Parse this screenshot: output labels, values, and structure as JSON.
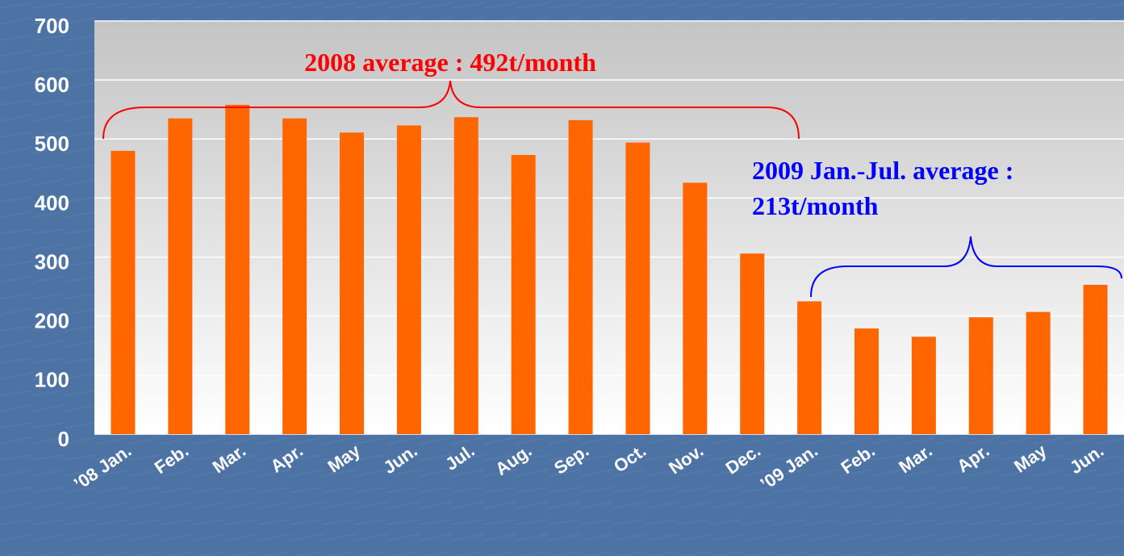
{
  "chart_data": {
    "type": "bar",
    "categories": [
      "’08 Jan.",
      "Feb.",
      "Mar.",
      "Apr.",
      "May",
      "Jun.",
      "Jul.",
      "Aug.",
      "Sep.",
      "Oct.",
      "Nov.",
      "Dec.",
      "’09 Jan.",
      "Feb.",
      "Mar.",
      "Apr.",
      "May",
      "Jun."
    ],
    "values": [
      480,
      535,
      558,
      535,
      511,
      523,
      537,
      473,
      532,
      494,
      426,
      306,
      225,
      179,
      165,
      198,
      207,
      253
    ],
    "color": "#ff6600",
    "ylim": [
      0,
      700
    ],
    "yticks": [
      0,
      100,
      200,
      300,
      400,
      500,
      600,
      700
    ],
    "grid": true,
    "annotations": [
      {
        "lines": [
          "2008 average : 492t/month"
        ],
        "color": "#ff0000"
      },
      {
        "lines": [
          "2009 Jan.-Jul. average :",
          "213t/month"
        ],
        "color": "#0000ff"
      }
    ]
  }
}
